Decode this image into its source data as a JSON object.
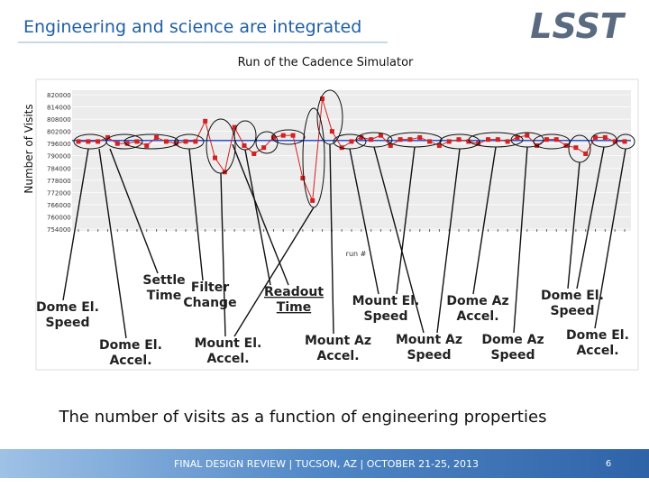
{
  "slide": {
    "title": "Engineering and science are integrated",
    "logo": "LSST",
    "caption": "The number of visits as a function of engineering properties",
    "footer": "FINAL DESIGN REVIEW | TUCSON, AZ | OCTOBER 21-25, 2013",
    "page": "6",
    "annotations": [
      [
        "Dome El.",
        "Speed"
      ],
      [
        "Dome El.",
        "Accel."
      ],
      [
        "Settle",
        "Time"
      ],
      [
        "Filter",
        "Change"
      ],
      [
        "Readout",
        "Time"
      ],
      [
        "Mount El.",
        "Accel."
      ],
      [
        "Mount Az",
        "Accel."
      ],
      [
        "Mount El.",
        "Speed"
      ],
      [
        "Mount Az",
        "Speed"
      ],
      [
        "Dome Az",
        "Accel."
      ],
      [
        "Dome Az",
        "Speed"
      ],
      [
        "Dome El.",
        "Speed"
      ],
      [
        "Dome El.",
        "Accel."
      ]
    ]
  },
  "chart_data": {
    "type": "line",
    "title": "Run of the Cadence Simulator",
    "y_label": "Number of Visits",
    "x_label": "run #",
    "categories": [
      null,
      null,
      null,
      null,
      null,
      null,
      null,
      null,
      null,
      null,
      null,
      null,
      null,
      null,
      null,
      null,
      null,
      null,
      null,
      null,
      null,
      null,
      null,
      null,
      null,
      null,
      null,
      null,
      null,
      null,
      null,
      null,
      null,
      null,
      null,
      null,
      null,
      null,
      null,
      null,
      null,
      null,
      null,
      null,
      null,
      null,
      null,
      null,
      null,
      null,
      null,
      null,
      null,
      null,
      null,
      null,
      null
    ],
    "series": [
      {
        "name": null,
        "color": "#d42020",
        "values": [
          797000,
          797000,
          797000,
          799000,
          796000,
          796000,
          797000,
          795000,
          799000,
          797000,
          796000,
          797000,
          797000,
          807000,
          789000,
          782000,
          804000,
          795000,
          791000,
          794000,
          799000,
          800000,
          800000,
          779000,
          768000,
          818000,
          802000,
          794000,
          797000,
          799000,
          798000,
          800000,
          795000,
          798000,
          798000,
          799000,
          797000,
          795000,
          797000,
          798000,
          797000,
          796000,
          798000,
          798000,
          797000,
          799000,
          800000,
          795000,
          798000,
          798000,
          795000,
          794000,
          791000,
          799000,
          799000,
          797000,
          797000
        ]
      }
    ],
    "reference_line": {
      "value": 797500,
      "color": "#3050d0"
    },
    "ylim": [
      754000,
      820000
    ],
    "yticks": [
      754000,
      760000,
      766000,
      772000,
      778000,
      784000,
      790000,
      796000,
      802000,
      808000,
      814000,
      820000
    ],
    "grid": true
  }
}
